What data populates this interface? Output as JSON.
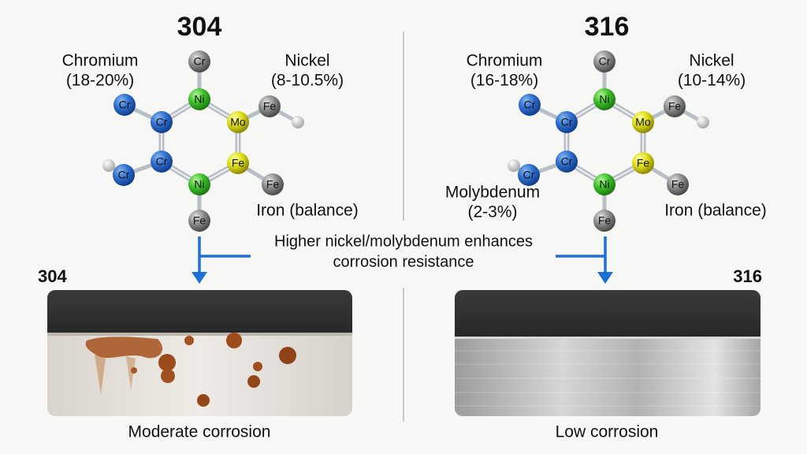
{
  "panels": [
    {
      "title": "304",
      "atoms": [
        "Cr",
        "Ni",
        "Mo",
        "Fe",
        "Cr",
        "Cr",
        "Cr",
        "Cr",
        "Fe",
        "Ni",
        "Fe",
        "Fe"
      ],
      "labels": [
        {
          "lines": [
            "Chromium",
            "(18-20%)"
          ]
        },
        {
          "lines": [
            "Nickel",
            "(8-10.5%)"
          ]
        },
        {
          "lines": [
            "Iron (balance)"
          ]
        }
      ],
      "sample_label": "304",
      "caption": "Moderate corrosion"
    },
    {
      "title": "316",
      "atoms": [
        "Cr",
        "Ni",
        "Mo",
        "Fe",
        "Cr",
        "Cr",
        "Cr",
        "Cr",
        "Fe",
        "Ni",
        "Fe",
        "Fe"
      ],
      "labels": [
        {
          "lines": [
            "Chromium",
            "(16-18%)"
          ]
        },
        {
          "lines": [
            "Nickel",
            "(10-14%)"
          ]
        },
        {
          "lines": [
            "Molybdenum",
            "(2-3%)"
          ]
        },
        {
          "lines": [
            "Iron (balance)"
          ]
        }
      ],
      "sample_label": "316",
      "caption": "Low corrosion"
    }
  ],
  "note": [
    "Higher nickel/molybdenum enhances",
    "corrosion resistance"
  ]
}
